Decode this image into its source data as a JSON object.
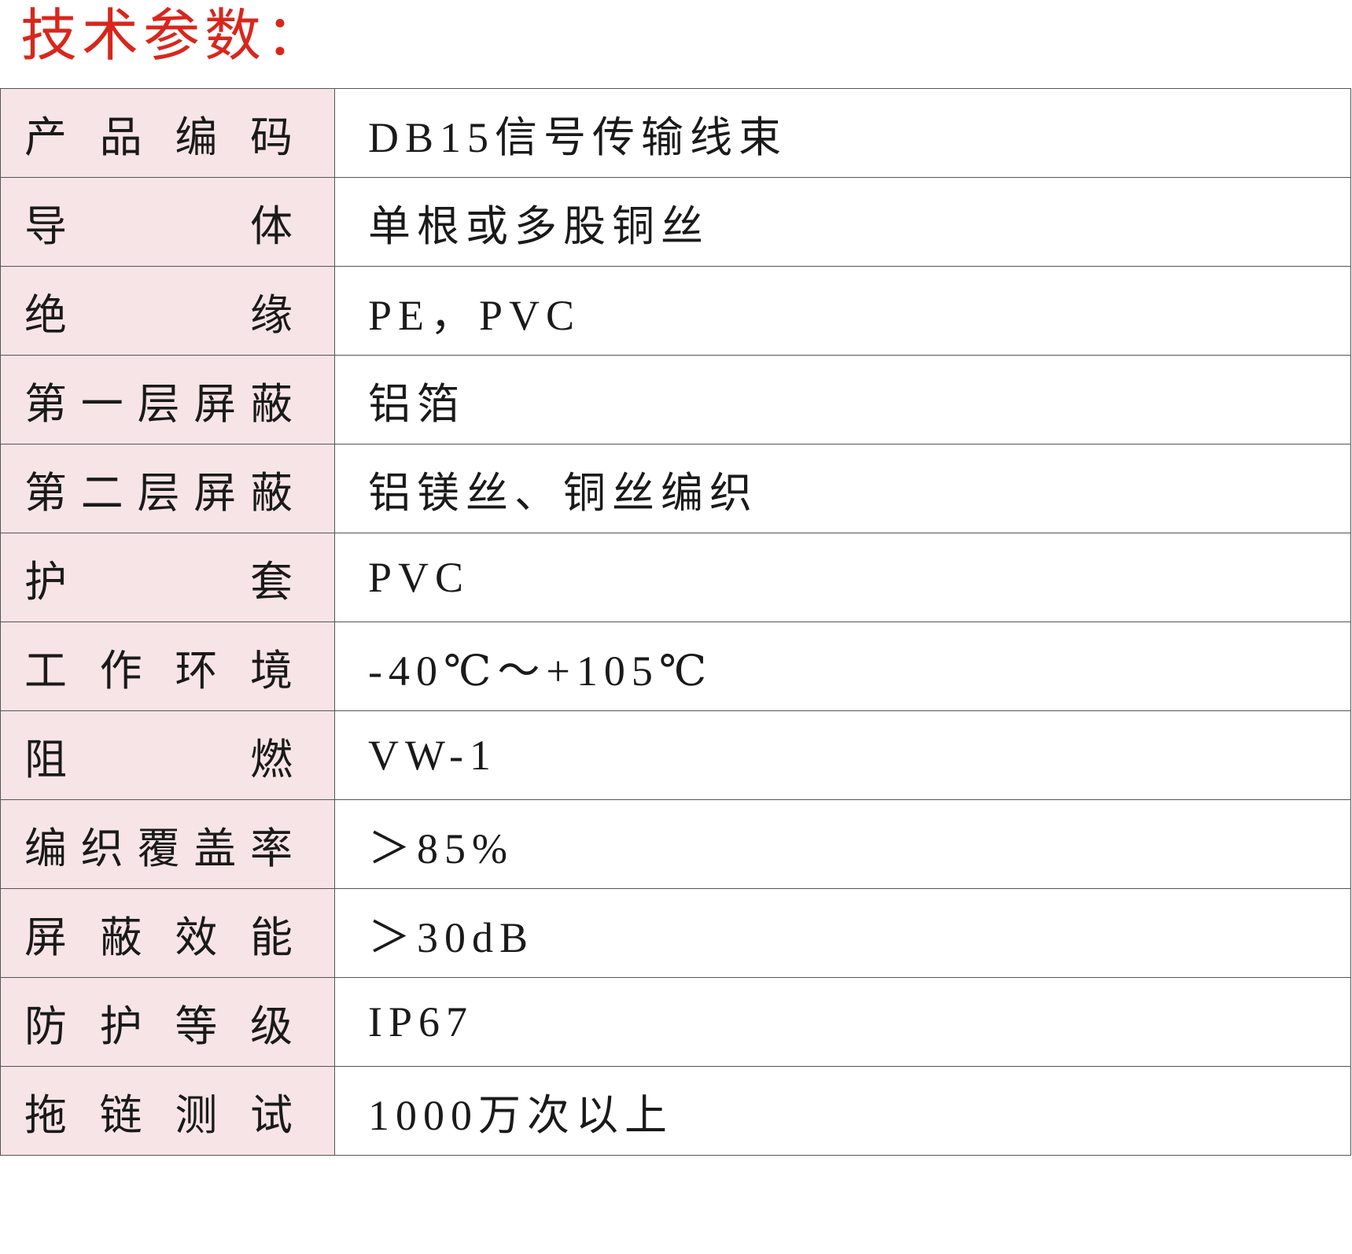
{
  "title": "技术参数：",
  "colors": {
    "title": "#d9261c",
    "label_bg": "#f7e4e6",
    "border": "#555555"
  },
  "rows": [
    {
      "label": "产品编码",
      "value": "DB15信号传输线束"
    },
    {
      "label": "导体",
      "value": "单根或多股铜丝"
    },
    {
      "label": "绝缘",
      "value": "PE，PVC"
    },
    {
      "label": "第一层屏蔽",
      "value": "铝箔"
    },
    {
      "label": "第二层屏蔽",
      "value": "铝镁丝、铜丝编织"
    },
    {
      "label": "护套",
      "value": "PVC"
    },
    {
      "label": "工作环境",
      "value": "-40℃～+105℃"
    },
    {
      "label": "阻燃",
      "value": "VW-1"
    },
    {
      "label": "编织覆盖率",
      "value": "＞85%"
    },
    {
      "label": "屏蔽效能",
      "value": "＞30dB"
    },
    {
      "label": "防护等级",
      "value": "IP67"
    },
    {
      "label": "拖链测试",
      "value": "1000万次以上"
    }
  ]
}
